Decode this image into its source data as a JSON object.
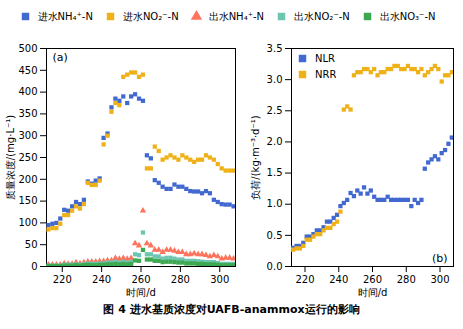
{
  "chart_data": [
    {
      "type": "scatter",
      "title": "图 4 进水基质浓度对UAFB-anammox运行的影响",
      "xlabel": "时间/d",
      "ylabel": "质量浓度/(mg·L⁻¹)",
      "xlim": [
        212,
        308
      ],
      "ylim": [
        0,
        500
      ],
      "xticks": [
        220,
        240,
        260,
        280,
        300
      ],
      "yticks": [
        0,
        50,
        100,
        150,
        200,
        250,
        300,
        350,
        400,
        450,
        500
      ],
      "grid": false,
      "legend": "top",
      "annotations": [
        {
          "text": "(a)"
        }
      ],
      "series": [
        {
          "name": "进水NH₄⁺-N",
          "marker": "square",
          "x": [
            213,
            215,
            217,
            219,
            221,
            223,
            225,
            227,
            229,
            231,
            233,
            235,
            237,
            239,
            241,
            243,
            245,
            247,
            249,
            251,
            253,
            255,
            257,
            259,
            261,
            263,
            265,
            267,
            269,
            271,
            273,
            275,
            277,
            279,
            281,
            283,
            285,
            287,
            289,
            291,
            293,
            295,
            297,
            299,
            301,
            303,
            305,
            307
          ],
          "values": [
            95,
            98,
            100,
            110,
            130,
            128,
            138,
            148,
            143,
            153,
            195,
            190,
            197,
            202,
            295,
            305,
            365,
            385,
            380,
            390,
            375,
            390,
            395,
            385,
            380,
            255,
            248,
            198,
            192,
            183,
            178,
            178,
            188,
            183,
            183,
            178,
            173,
            172,
            172,
            168,
            173,
            168,
            153,
            148,
            143,
            142,
            142,
            138
          ]
        },
        {
          "name": "进水NO₂⁻-N",
          "marker": "square",
          "x": [
            213,
            215,
            217,
            219,
            221,
            223,
            225,
            227,
            229,
            231,
            233,
            235,
            237,
            239,
            241,
            243,
            245,
            247,
            249,
            251,
            253,
            255,
            257,
            259,
            261,
            263,
            265,
            267,
            269,
            271,
            273,
            275,
            277,
            279,
            281,
            283,
            285,
            287,
            289,
            291,
            293,
            295,
            297,
            299,
            301,
            303,
            305,
            307
          ],
          "values": [
            85,
            88,
            88,
            98,
            118,
            118,
            128,
            138,
            133,
            143,
            192,
            187,
            187,
            197,
            280,
            300,
            355,
            375,
            370,
            435,
            440,
            445,
            445,
            435,
            440,
            225,
            225,
            275,
            265,
            245,
            250,
            255,
            250,
            245,
            255,
            250,
            245,
            240,
            245,
            245,
            255,
            250,
            245,
            235,
            225,
            220,
            220,
            220
          ]
        },
        {
          "name": "出水NH₄⁺-N",
          "marker": "triangle",
          "x": [
            213,
            215,
            217,
            219,
            221,
            223,
            225,
            227,
            229,
            231,
            233,
            235,
            237,
            239,
            241,
            243,
            245,
            247,
            249,
            251,
            253,
            255,
            257,
            259,
            261,
            263,
            265,
            267,
            269,
            271,
            273,
            275,
            277,
            279,
            281,
            283,
            285,
            287,
            289,
            291,
            293,
            295,
            297,
            299,
            301,
            303,
            305,
            307
          ],
          "values": [
            4,
            4,
            4,
            4,
            7,
            6,
            6,
            9,
            7,
            9,
            11,
            11,
            11,
            12,
            12,
            14,
            14,
            19,
            17,
            19,
            17,
            19,
            53,
            48,
            128,
            53,
            48,
            38,
            38,
            33,
            38,
            38,
            36,
            33,
            33,
            28,
            28,
            30,
            28,
            28,
            26,
            23,
            26,
            23,
            18,
            20,
            20,
            18
          ]
        },
        {
          "name": "出水NO₂⁻-N",
          "marker": "square",
          "x": [
            213,
            215,
            217,
            219,
            221,
            223,
            225,
            227,
            229,
            231,
            233,
            235,
            237,
            239,
            241,
            243,
            245,
            247,
            249,
            251,
            253,
            255,
            257,
            259,
            261,
            263,
            265,
            267,
            269,
            271,
            273,
            275,
            277,
            279,
            281,
            283,
            285,
            287,
            289,
            291,
            293,
            295,
            297,
            299,
            301,
            303,
            305,
            307
          ],
          "values": [
            2,
            2,
            2,
            2,
            4,
            4,
            4,
            5,
            4,
            5,
            7,
            6,
            6,
            7,
            7,
            9,
            9,
            11,
            9,
            11,
            9,
            11,
            28,
            26,
            78,
            28,
            28,
            23,
            23,
            18,
            20,
            20,
            18,
            16,
            16,
            13,
            13,
            13,
            12,
            11,
            10,
            10,
            10,
            8,
            6,
            6,
            6,
            6
          ]
        },
        {
          "name": "出水NO₃⁻-N",
          "marker": "square",
          "x": [
            213,
            215,
            217,
            219,
            221,
            223,
            225,
            227,
            229,
            231,
            233,
            235,
            237,
            239,
            241,
            243,
            245,
            247,
            249,
            251,
            253,
            255,
            257,
            259,
            261,
            263,
            265,
            267,
            269,
            271,
            273,
            275,
            277,
            279,
            281,
            283,
            285,
            287,
            289,
            291,
            293,
            295,
            297,
            299,
            301,
            303,
            305,
            307
          ],
          "values": [
            1,
            1,
            1,
            1,
            2,
            2,
            2,
            3,
            2,
            3,
            4,
            3,
            3,
            4,
            4,
            5,
            5,
            6,
            5,
            6,
            5,
            6,
            14,
            13,
            38,
            16,
            16,
            13,
            13,
            10,
            11,
            11,
            10,
            9,
            9,
            7,
            7,
            7,
            6,
            6,
            5,
            5,
            5,
            4,
            3,
            3,
            3,
            3
          ]
        }
      ]
    },
    {
      "type": "scatter",
      "xlabel": "时间/d",
      "ylabel": "负荷/(kg·m⁻³·d⁻¹)",
      "xlim": [
        212,
        308
      ],
      "ylim": [
        0,
        3.5
      ],
      "xticks": [
        220,
        240,
        260,
        280,
        300
      ],
      "yticks": [
        {
          "value": 0,
          "label": "0.0"
        },
        0.5,
        {
          "value": 1.0,
          "label": "1.0"
        },
        1.5,
        {
          "value": 2.0,
          "label": "2.0"
        },
        2.5,
        {
          "value": 3.0,
          "label": "3.0"
        },
        3.5
      ],
      "grid": false,
      "legend": "upper left",
      "annotations": [
        {
          "text": "(b)"
        }
      ],
      "series": [
        {
          "name": "NLR",
          "marker": "square",
          "x": [
            213,
            215,
            217,
            219,
            221,
            223,
            225,
            227,
            229,
            231,
            233,
            235,
            237,
            239,
            241,
            243,
            245,
            247,
            249,
            251,
            253,
            255,
            257,
            259,
            261,
            263,
            265,
            267,
            269,
            271,
            273,
            275,
            277,
            279,
            281,
            283,
            285,
            287,
            289,
            291,
            293,
            295,
            297,
            299,
            301,
            303,
            305,
            307
          ],
          "values": [
            0.3,
            0.33,
            0.33,
            0.38,
            0.48,
            0.48,
            0.52,
            0.58,
            0.58,
            0.63,
            0.72,
            0.72,
            0.78,
            0.83,
            0.97,
            1.02,
            1.07,
            1.18,
            1.13,
            1.22,
            1.17,
            1.27,
            1.17,
            1.22,
            1.12,
            1.07,
            1.07,
            1.07,
            1.12,
            1.07,
            1.07,
            1.07,
            1.07,
            1.07,
            1.07,
            0.97,
            1.07,
            1.02,
            1.07,
            1.57,
            1.67,
            1.72,
            1.77,
            1.72,
            1.82,
            1.87,
            1.97,
            2.07
          ]
        },
        {
          "name": "NRR",
          "marker": "square",
          "x": [
            213,
            215,
            217,
            219,
            221,
            223,
            225,
            227,
            229,
            231,
            233,
            235,
            237,
            239,
            241,
            243,
            245,
            247,
            249,
            251,
            253,
            255,
            257,
            259,
            261,
            263,
            265,
            267,
            269,
            271,
            273,
            275,
            277,
            279,
            281,
            283,
            285,
            287,
            289,
            291,
            293,
            295,
            297,
            299,
            301,
            303,
            305,
            307
          ],
          "values": [
            0.27,
            0.29,
            0.29,
            0.33,
            0.43,
            0.43,
            0.48,
            0.52,
            0.52,
            0.58,
            0.62,
            0.62,
            0.68,
            0.72,
            0.88,
            2.52,
            2.57,
            2.52,
            3.07,
            3.12,
            3.12,
            3.17,
            3.17,
            3.12,
            3.17,
            3.07,
            3.12,
            3.12,
            3.17,
            3.17,
            3.22,
            3.22,
            3.17,
            3.17,
            3.22,
            3.17,
            3.17,
            3.12,
            3.17,
            3.07,
            3.12,
            3.17,
            3.22,
            3.17,
            2.97,
            3.07,
            3.07,
            3.12
          ]
        }
      ]
    }
  ]
}
